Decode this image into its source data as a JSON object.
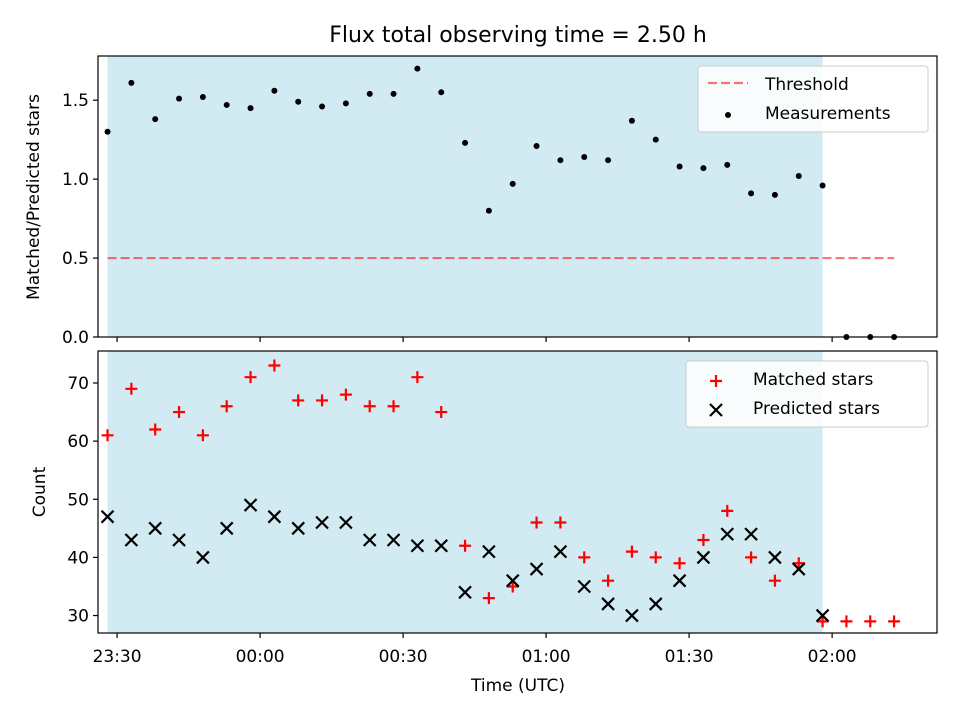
{
  "figure": {
    "title": "Flux total observing time = 2.50 h",
    "xlabel": "Time (UTC)"
  },
  "colors": {
    "shade": "#add8e6",
    "threshold": "#ff0000",
    "measurements": "#000000",
    "matched": "#ff0000",
    "predicted": "#000000"
  },
  "chart_data": [
    {
      "type": "scatter",
      "ylabel": "Matched/Predicted stars",
      "ylim": [
        0,
        1.78
      ],
      "yticks": [
        0.0,
        0.5,
        1.0,
        1.5
      ],
      "ytick_labels": [
        "0.0",
        "0.5",
        "1.0",
        "1.5"
      ],
      "legend": {
        "placement": "upper-right",
        "entries": [
          "Threshold",
          "Measurements"
        ]
      },
      "observing_window": [
        "23:28",
        "01:58"
      ],
      "threshold": {
        "name": "Threshold",
        "value": 0.5,
        "x_range": [
          "23:28",
          "02:13"
        ],
        "style": "dashed"
      },
      "series": [
        {
          "name": "Measurements",
          "marker": "dot",
          "x": [
            "23:28",
            "23:33",
            "23:38",
            "23:43",
            "23:48",
            "23:53",
            "23:58",
            "00:03",
            "00:08",
            "00:13",
            "00:18",
            "00:23",
            "00:28",
            "00:33",
            "00:38",
            "00:43",
            "00:48",
            "00:53",
            "00:58",
            "01:03",
            "01:08",
            "01:13",
            "01:18",
            "01:23",
            "01:28",
            "01:33",
            "01:38",
            "01:43",
            "01:48",
            "01:53",
            "01:58",
            "02:03",
            "02:08",
            "02:13"
          ],
          "y": [
            1.3,
            1.61,
            1.38,
            1.51,
            1.52,
            1.47,
            1.45,
            1.56,
            1.49,
            1.46,
            1.48,
            1.54,
            1.54,
            1.7,
            1.55,
            1.23,
            0.8,
            0.97,
            1.21,
            1.12,
            1.14,
            1.12,
            1.37,
            1.25,
            1.08,
            1.07,
            1.09,
            0.91,
            0.9,
            1.02,
            0.96,
            0.0,
            0.0,
            0.0
          ]
        }
      ]
    },
    {
      "type": "scatter",
      "ylabel": "Count",
      "ylim": [
        27,
        75.5
      ],
      "yticks": [
        30,
        40,
        50,
        60,
        70
      ],
      "ytick_labels": [
        "30",
        "40",
        "50",
        "60",
        "70"
      ],
      "xlim": [
        "23:26",
        "02:22"
      ],
      "xticks": [
        "23:30",
        "00:00",
        "00:30",
        "01:00",
        "01:30",
        "02:00"
      ],
      "legend": {
        "placement": "upper-right",
        "entries": [
          "Matched stars",
          "Predicted stars"
        ]
      },
      "observing_window": [
        "23:28",
        "01:58"
      ],
      "series": [
        {
          "name": "Matched stars",
          "marker": "plus",
          "x": [
            "23:28",
            "23:33",
            "23:38",
            "23:43",
            "23:48",
            "23:53",
            "23:58",
            "00:03",
            "00:08",
            "00:13",
            "00:18",
            "00:23",
            "00:28",
            "00:33",
            "00:38",
            "00:43",
            "00:48",
            "00:53",
            "00:58",
            "01:03",
            "01:08",
            "01:13",
            "01:18",
            "01:23",
            "01:28",
            "01:33",
            "01:38",
            "01:43",
            "01:48",
            "01:53",
            "01:58",
            "02:03",
            "02:08",
            "02:13"
          ],
          "y": [
            61,
            69,
            62,
            65,
            61,
            66,
            71,
            73,
            67,
            67,
            68,
            66,
            66,
            71,
            65,
            42,
            33,
            35,
            46,
            46,
            40,
            36,
            41,
            40,
            39,
            43,
            48,
            40,
            36,
            39,
            29,
            29,
            29,
            29
          ]
        },
        {
          "name": "Predicted stars",
          "marker": "x",
          "x": [
            "23:28",
            "23:33",
            "23:38",
            "23:43",
            "23:48",
            "23:53",
            "23:58",
            "00:03",
            "00:08",
            "00:13",
            "00:18",
            "00:23",
            "00:28",
            "00:33",
            "00:38",
            "00:43",
            "00:48",
            "00:53",
            "00:58",
            "01:03",
            "01:08",
            "01:13",
            "01:18",
            "01:23",
            "01:28",
            "01:33",
            "01:38",
            "01:43",
            "01:48",
            "01:53",
            "01:58"
          ],
          "y": [
            47,
            43,
            45,
            43,
            40,
            45,
            49,
            47,
            45,
            46,
            46,
            43,
            43,
            42,
            42,
            34,
            41,
            36,
            38,
            41,
            35,
            32,
            30,
            32,
            36,
            40,
            44,
            44,
            40,
            38,
            30
          ]
        }
      ]
    }
  ]
}
